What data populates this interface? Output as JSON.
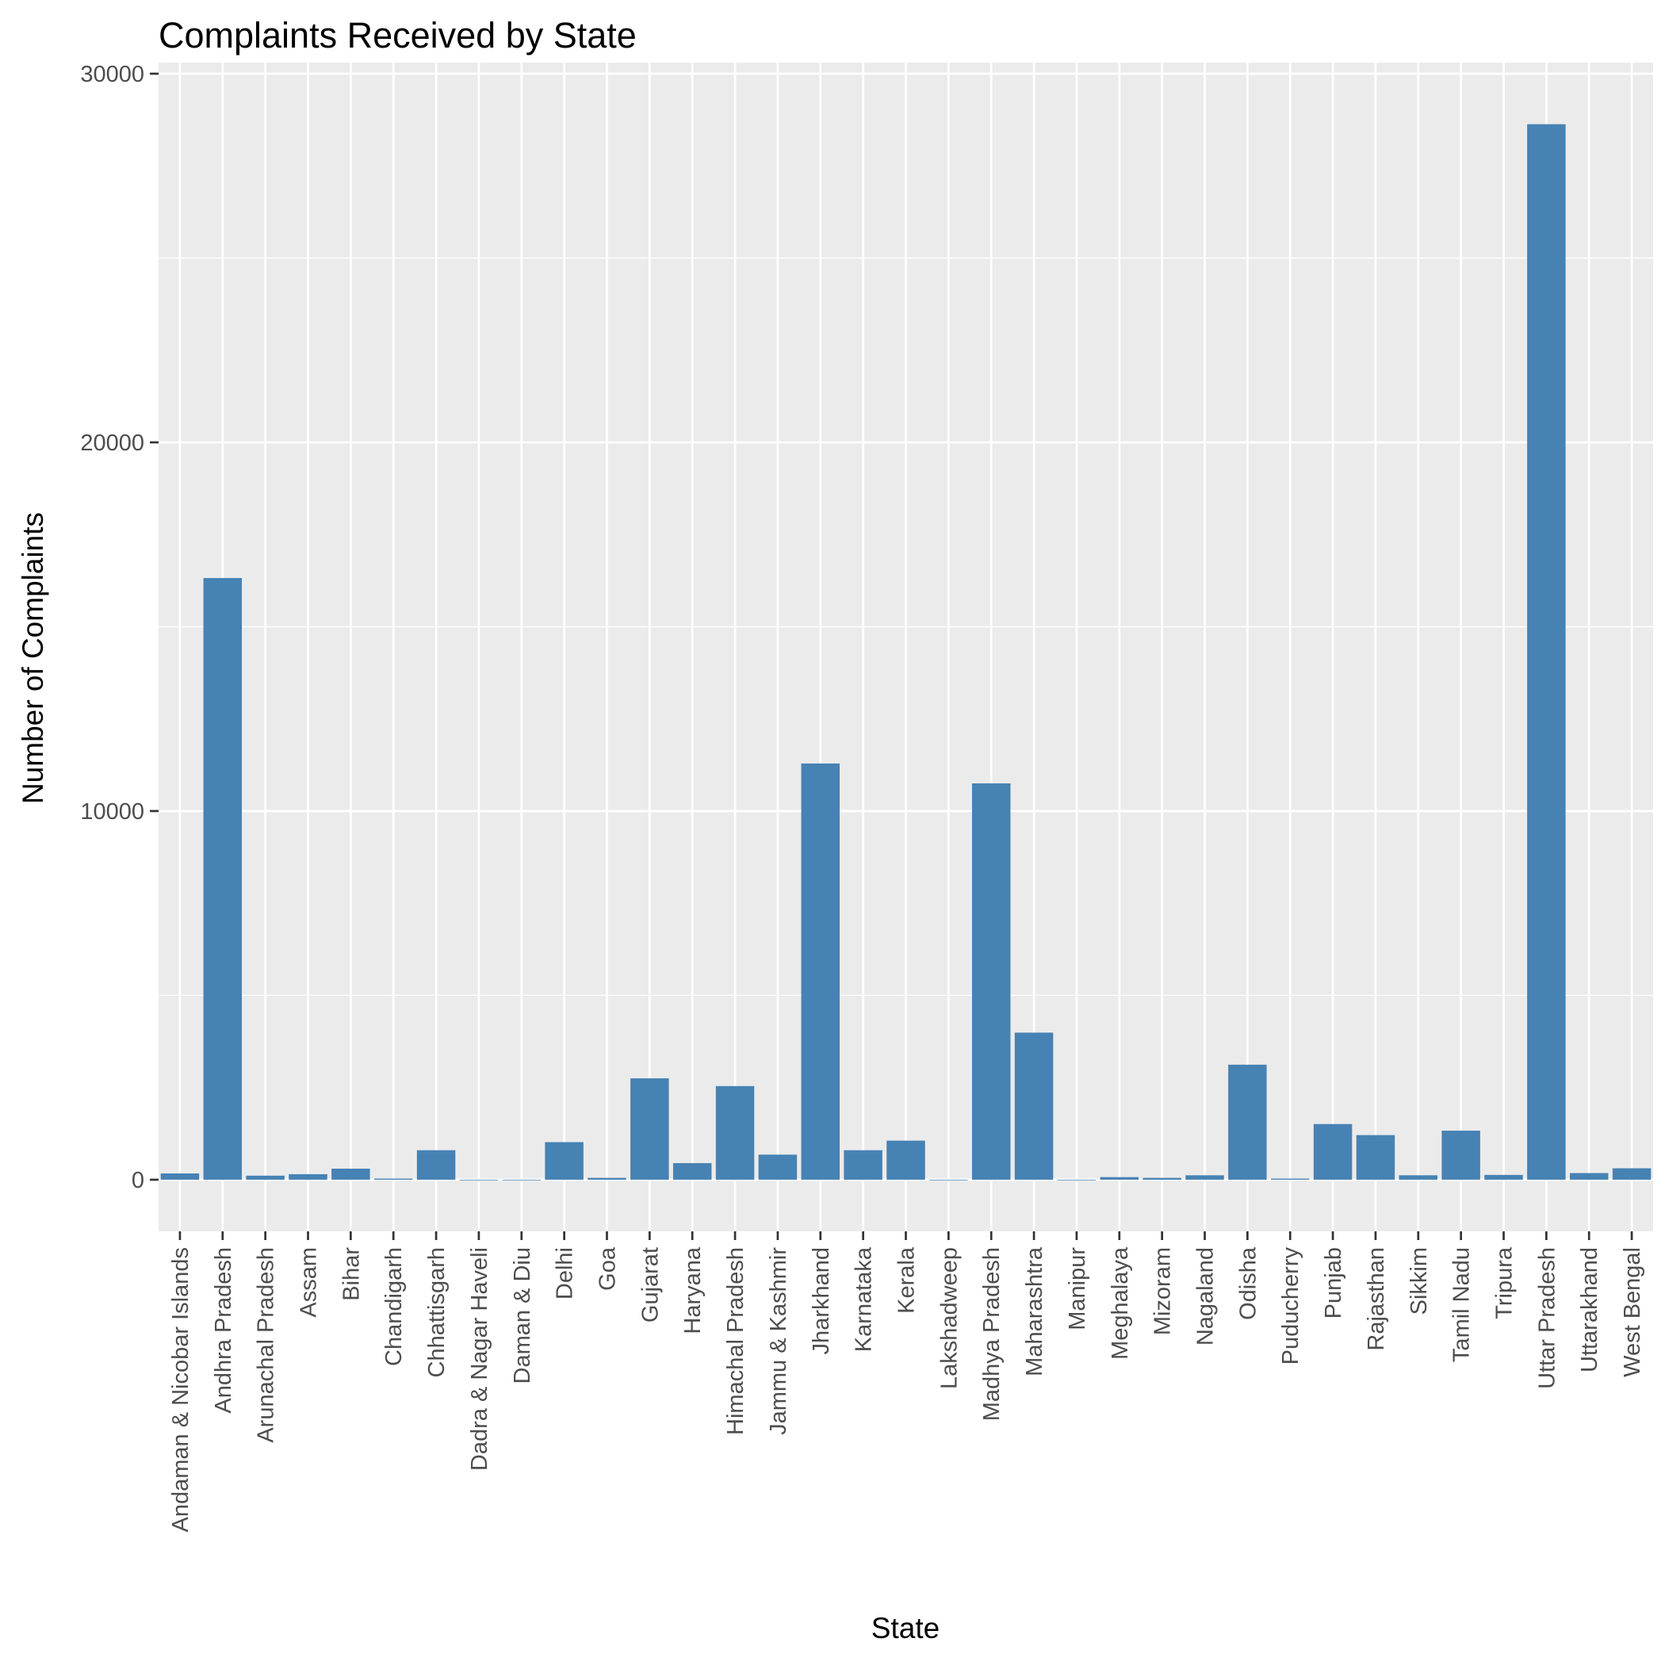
{
  "chart_data": {
    "type": "bar",
    "title": "Complaints Received by State",
    "xlabel": "State",
    "ylabel": "Number of Complaints",
    "ylim": [
      -1400,
      30300
    ],
    "yticks": [
      0,
      10000,
      20000,
      30000
    ],
    "grid": true,
    "legend": "none",
    "colors": {
      "bar": "#4682B4",
      "panel": "#EBEBEB",
      "grid": "#FFFFFF"
    },
    "categories": [
      "Andaman & Nicobar Islands",
      "Andhra Pradesh",
      "Arunachal Pradesh",
      "Assam",
      "Bihar",
      "Chandigarh",
      "Chhattisgarh",
      "Dadra & Nagar Haveli",
      "Daman & Diu",
      "Delhi",
      "Goa",
      "Gujarat",
      "Haryana",
      "Himachal Pradesh",
      "Jammu & Kashmir",
      "Jharkhand",
      "Karnataka",
      "Kerala",
      "Lakshadweep",
      "Madhya Pradesh",
      "Maharashtra",
      "Manipur",
      "Meghalaya",
      "Mizoram",
      "Nagaland",
      "Odisha",
      "Puducherry",
      "Punjab",
      "Rajasthan",
      "Sikkim",
      "Tamil Nadu",
      "Tripura",
      "Uttar Pradesh",
      "Uttarakhand",
      "West Bengal"
    ],
    "values": [
      170,
      16320,
      110,
      150,
      300,
      30,
      800,
      0,
      0,
      1020,
      50,
      2750,
      450,
      2540,
      680,
      11290,
      800,
      1060,
      0,
      10750,
      3990,
      0,
      70,
      50,
      120,
      3120,
      30,
      1510,
      1210,
      120,
      1330,
      130,
      28630,
      180,
      310
    ]
  }
}
